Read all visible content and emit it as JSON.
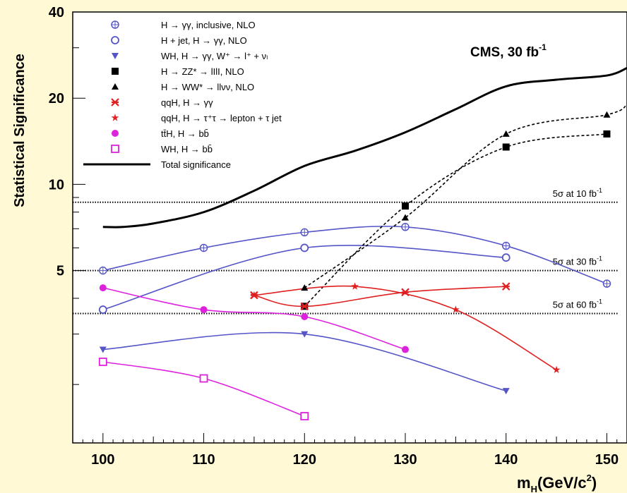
{
  "chart_data": {
    "type": "line",
    "title": "CMS, 30 fb",
    "title_superscript": "-1",
    "ylabel": "Statistical Significance",
    "xlabel_main": "m",
    "xlabel_sub": "H",
    "xlabel_units": "(GeV/c",
    "xlabel_sup": "2",
    "xlabel_close": ")",
    "xlim": [
      97,
      152
    ],
    "y_scale": "log",
    "ylim": [
      1.25,
      40
    ],
    "x_ticks": [
      "100",
      "110",
      "120",
      "130",
      "140",
      "150"
    ],
    "y_ticks": [
      "5",
      "10",
      "20",
      "40"
    ],
    "grid": false,
    "legend_position": "top-left",
    "reference_lines": [
      {
        "label": "5σ at 10 fb",
        "label_sup": "-1",
        "y": 8.66
      },
      {
        "label": "5σ at 30 fb",
        "label_sup": "-1",
        "y": 5.0
      },
      {
        "label": "5σ at 60 fb",
        "label_sup": "-1",
        "y": 3.54
      }
    ],
    "series": [
      {
        "name": "H → γγ, inclusive, NLO",
        "color": "#5555c8",
        "marker": "circle-cross",
        "dash": "solid",
        "x": [
          100,
          110,
          120,
          130,
          140,
          150
        ],
        "y": [
          5.0,
          6.0,
          6.8,
          7.1,
          6.1,
          4.5
        ]
      },
      {
        "name": "H + jet, H → γγ, NLO",
        "color": "#5555c8",
        "marker": "circle-open",
        "dash": "solid",
        "x": [
          100,
          120,
          140
        ],
        "y": [
          3.65,
          6.0,
          5.55
        ]
      },
      {
        "name": "WH, H → γγ, W⁺ → l⁺ + νₗ",
        "color": "#5555c8",
        "marker": "triangle-down",
        "dash": "solid",
        "x": [
          100,
          120,
          140
        ],
        "y": [
          2.65,
          3.0,
          1.9
        ]
      },
      {
        "name": "H → ZZ* → lIlI, NLO",
        "color": "#000000",
        "marker": "square",
        "dash": "dashed",
        "x": [
          120,
          130,
          140,
          150
        ],
        "y": [
          3.75,
          8.4,
          13.5,
          15.0
        ]
      },
      {
        "name": "H → WW* → llνν, NLO",
        "color": "#000000",
        "marker": "triangle-up",
        "dash": "dashed",
        "x": [
          120,
          130,
          140,
          150,
          152
        ],
        "y": [
          4.35,
          7.65,
          15.0,
          17.5,
          19.0
        ]
      },
      {
        "name": "qqH, H → γγ",
        "color": "#e02020",
        "marker": "x-star",
        "dash": "solid",
        "x": [
          115,
          120,
          130,
          140
        ],
        "y": [
          4.1,
          3.75,
          4.2,
          4.4
        ]
      },
      {
        "name": "qqH, H → τ⁺τ → lepton + τ jet",
        "color": "#e02020",
        "marker": "star",
        "dash": "solid",
        "x": [
          115,
          125,
          135,
          145
        ],
        "y": [
          4.1,
          4.4,
          3.65,
          2.25
        ]
      },
      {
        "name": "tt̄H, H → bb̄",
        "color": "#dd22dd",
        "marker": "circle-filled",
        "dash": "solid",
        "x": [
          100,
          110,
          120,
          130
        ],
        "y": [
          4.35,
          3.65,
          3.45,
          2.65
        ]
      },
      {
        "name": "WH, H → bb̄",
        "color": "#dd22dd",
        "marker": "square-open",
        "dash": "solid",
        "x": [
          100,
          110,
          120
        ],
        "y": [
          2.4,
          2.1,
          1.55
        ]
      },
      {
        "name": "Total significance",
        "color": "#000000",
        "marker": "none",
        "dash": "solid",
        "width": 3,
        "x": [
          100,
          102,
          105,
          110,
          115,
          120,
          125,
          130,
          135,
          140,
          145,
          150,
          152
        ],
        "y": [
          7.1,
          7.1,
          7.3,
          8.0,
          9.5,
          11.6,
          13.1,
          15.2,
          18.3,
          22.0,
          23.2,
          24.0,
          25.5
        ]
      }
    ]
  }
}
